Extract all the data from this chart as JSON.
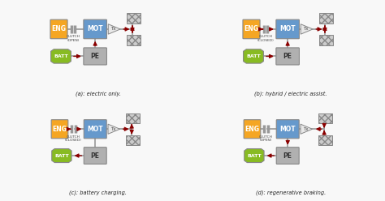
{
  "background": "#f8f8f8",
  "panel_bg": "#ffffff",
  "colors": {
    "eng": "#f5a623",
    "mot": "#6699cc",
    "pe": "#b0b0b0",
    "batt": "#88bb22",
    "arrow": "#8b0000",
    "shaft": "#999999",
    "wheel_fill": "#cccccc",
    "wheel_edge": "#888888",
    "tx_fill": "#e8e8e8",
    "tx_edge": "#888888",
    "clutch": "#999999",
    "box_edge": "#888888"
  },
  "panels": [
    {
      "label": "(a): electric only.",
      "clutch_text": "CLUTCH\n(OPEN)",
      "clutch_closed": false,
      "eng_flow": false,
      "elec_flow": true,
      "mot_to_wheel": true,
      "wheel_to_mot": false,
      "pe_to_batt": false
    },
    {
      "label": "(b): hybrid / electric assist.",
      "clutch_text": "CLUTCH\n(CLOSED)",
      "clutch_closed": true,
      "eng_flow": true,
      "elec_flow": true,
      "mot_to_wheel": true,
      "wheel_to_mot": false,
      "pe_to_batt": false
    },
    {
      "label": "(c): battery charging.",
      "clutch_text": "CLUTCH\n(CLOSED)",
      "clutch_closed": true,
      "eng_flow": true,
      "elec_flow": false,
      "mot_to_wheel": true,
      "wheel_to_mot": false,
      "pe_to_batt": true
    },
    {
      "label": "(d): regenerative braking.",
      "clutch_text": "CLUTCH\n(OPEN)",
      "clutch_closed": false,
      "eng_flow": false,
      "elec_flow": false,
      "mot_to_wheel": false,
      "wheel_to_mot": true,
      "pe_to_batt": true
    }
  ]
}
